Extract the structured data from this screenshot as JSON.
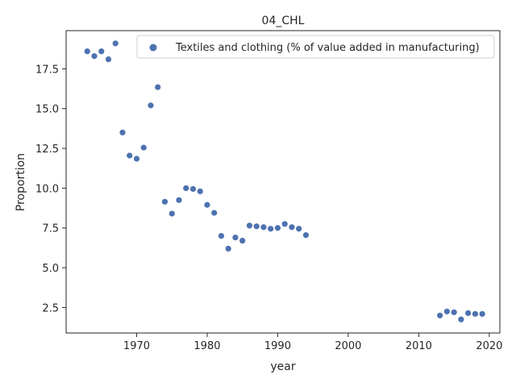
{
  "chart_data": {
    "type": "scatter",
    "title": "04_CHL",
    "xlabel": "year",
    "ylabel": "Proportion",
    "xlim": [
      1960,
      2021.5
    ],
    "ylim": [
      0.9,
      19.9
    ],
    "xticks": [
      1970,
      1980,
      1990,
      2000,
      2010,
      2020
    ],
    "yticks": [
      2.5,
      5.0,
      7.5,
      10.0,
      12.5,
      15.0,
      17.5
    ],
    "ytick_labels": [
      "2.5",
      "5.0",
      "7.5",
      "10.0",
      "12.5",
      "15.0",
      "17.5"
    ],
    "grid": false,
    "legend_position": "top-right",
    "series": [
      {
        "name": "Textiles and clothing (% of value added in manufacturing)",
        "color": "#4c72b0",
        "x": [
          1963,
          1964,
          1965,
          1966,
          1967,
          1968,
          1969,
          1970,
          1971,
          1972,
          1973,
          1974,
          1975,
          1976,
          1977,
          1978,
          1979,
          1980,
          1981,
          1982,
          1983,
          1984,
          1985,
          1986,
          1987,
          1988,
          1989,
          1990,
          1991,
          1992,
          1993,
          1994,
          2013,
          2014,
          2015,
          2016,
          2017,
          2018,
          2019
        ],
        "y": [
          18.6,
          18.3,
          18.6,
          18.1,
          19.1,
          13.5,
          12.05,
          11.85,
          12.55,
          15.2,
          16.35,
          9.15,
          8.4,
          9.25,
          10.0,
          9.95,
          9.8,
          8.95,
          8.45,
          7.0,
          6.2,
          6.9,
          6.7,
          7.65,
          7.6,
          7.55,
          7.45,
          7.5,
          7.75,
          7.55,
          7.45,
          7.05,
          2.0,
          2.25,
          2.2,
          1.75,
          2.15,
          2.1,
          2.1
        ]
      }
    ]
  }
}
